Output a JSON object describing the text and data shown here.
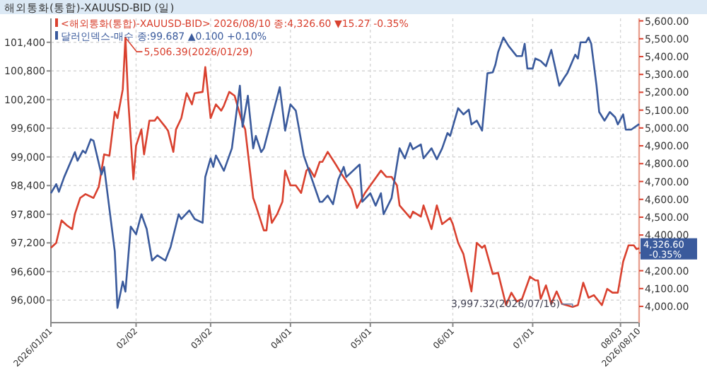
{
  "chart_data": {
    "type": "line",
    "title": "해외통화(통합)-XAUUSD-BID (일)",
    "xlim": [
      "2026-01-01",
      "2026-08-10"
    ],
    "xticks": [
      {
        "value": "2026-01-01",
        "label": "2026/01/01"
      },
      {
        "value": "2026-02-02",
        "label": "02/02"
      },
      {
        "value": "2026-03-02",
        "label": "03/02"
      },
      {
        "value": "2026-04-01",
        "label": "04/01"
      },
      {
        "value": "2026-05-01",
        "label": "05/01"
      },
      {
        "value": "2026-06-01",
        "label": "06/01"
      },
      {
        "value": "2026-07-01",
        "label": "07/01"
      },
      {
        "value": "2026-08-03",
        "label": "08/03"
      },
      {
        "value": "2026-08-10",
        "label": "2026/08/10"
      }
    ],
    "ylim": [
      95530,
      101900
    ],
    "yticks": [
      {
        "value": 96000,
        "label": "96,000"
      },
      {
        "value": 96600,
        "label": "96,600"
      },
      {
        "value": 97200,
        "label": "97,200"
      },
      {
        "value": 97800,
        "label": "97,800"
      },
      {
        "value": 98400,
        "label": "98,400"
      },
      {
        "value": 99000,
        "label": "99,000"
      },
      {
        "value": 99600,
        "label": "99,600"
      },
      {
        "value": 100200,
        "label": "100,200"
      },
      {
        "value": 100800,
        "label": "100,800"
      },
      {
        "value": 101400,
        "label": "101,400"
      }
    ],
    "y2lim": [
      3909,
      5614
    ],
    "y2ticks": [
      {
        "value": 4000,
        "label": "4,000.00"
      },
      {
        "value": 4100,
        "label": "4,100.00"
      },
      {
        "value": 4200,
        "label": "4,200.00"
      },
      {
        "value": 4300,
        "label": null
      },
      {
        "value": 4400,
        "label": "4,400.00"
      },
      {
        "value": 4500,
        "label": "4,500.00"
      },
      {
        "value": 4600,
        "label": "4,600.00"
      },
      {
        "value": 4700,
        "label": "4,700.00"
      },
      {
        "value": 4800,
        "label": "4,800.00"
      },
      {
        "value": 4900,
        "label": "4,900.00"
      },
      {
        "value": 5000,
        "label": "5,000.00"
      },
      {
        "value": 5100,
        "label": "5,100.00"
      },
      {
        "value": 5200,
        "label": "5,200.00"
      },
      {
        "value": 5300,
        "label": "5,300.00"
      },
      {
        "value": 5400,
        "label": "5,400.00"
      },
      {
        "value": 5500,
        "label": "5,500.00"
      },
      {
        "value": 5600,
        "label": "5,600.00"
      }
    ],
    "grid": true,
    "legend": "top left",
    "marker": "none",
    "line_style": "solid",
    "series": [
      {
        "name": "<해외통화(통합)-XAUUSD-BID> 2026/08/10 종:4,326.60 ▼15.27 -0.35%",
        "color": "#d9412f",
        "axis": "y2",
        "x": [
          "2026-01-01",
          "2026-01-03",
          "2026-01-05",
          "2026-01-07",
          "2026-01-09",
          "2026-01-10",
          "2026-01-12",
          "2026-01-14",
          "2026-01-17",
          "2026-01-19",
          "2026-01-21",
          "2026-01-23",
          "2026-01-25",
          "2026-01-26",
          "2026-01-28",
          "2026-01-29",
          "2026-01-30",
          "2026-02-01",
          "2026-02-02",
          "2026-02-04",
          "2026-02-05",
          "2026-02-07",
          "2026-02-09",
          "2026-02-10",
          "2026-02-13",
          "2026-02-14",
          "2026-02-16",
          "2026-02-17",
          "2026-02-19",
          "2026-02-21",
          "2026-02-23",
          "2026-02-24",
          "2026-02-27",
          "2026-02-28",
          "2026-03-02",
          "2026-03-04",
          "2026-03-06",
          "2026-03-07",
          "2026-03-09",
          "2026-03-11",
          "2026-03-14",
          "2026-03-15",
          "2026-03-18",
          "2026-03-19",
          "2026-03-22",
          "2026-03-23",
          "2026-03-24",
          "2026-03-25",
          "2026-03-27",
          "2026-03-29",
          "2026-03-30",
          "2026-04-01",
          "2026-04-03",
          "2026-04-05",
          "2026-04-07",
          "2026-04-08",
          "2026-04-10",
          "2026-04-12",
          "2026-04-13",
          "2026-04-15",
          "2026-04-18",
          "2026-04-20",
          "2026-04-24",
          "2026-04-26",
          "2026-04-29",
          "2026-05-05",
          "2026-05-07",
          "2026-05-09",
          "2026-05-11",
          "2026-05-12",
          "2026-05-16",
          "2026-05-17",
          "2026-05-20",
          "2026-05-21",
          "2026-05-24",
          "2026-05-26",
          "2026-05-28",
          "2026-05-31",
          "2026-06-01",
          "2026-06-03",
          "2026-06-05",
          "2026-06-08",
          "2026-06-10",
          "2026-06-12",
          "2026-06-13",
          "2026-06-16",
          "2026-06-18",
          "2026-06-21",
          "2026-06-23",
          "2026-06-25",
          "2026-06-27",
          "2026-06-30",
          "2026-07-02",
          "2026-07-03",
          "2026-07-04",
          "2026-07-06",
          "2026-07-08",
          "2026-07-10",
          "2026-07-12",
          "2026-07-16",
          "2026-07-18",
          "2026-07-20",
          "2026-07-22",
          "2026-07-24",
          "2026-07-27",
          "2026-07-29",
          "2026-07-31",
          "2026-08-02",
          "2026-08-04",
          "2026-08-06",
          "2026-08-08",
          "2026-08-09",
          "2026-08-10"
        ],
        "values": [
          4328,
          4356,
          4482,
          4454,
          4433,
          4517,
          4608,
          4629,
          4608,
          4671,
          4852,
          4845,
          5090,
          5055,
          5216,
          5506.39,
          5167,
          4712,
          4901,
          4992,
          4852,
          5041,
          5041,
          5062,
          5006,
          4985,
          4866,
          4992,
          5055,
          5195,
          5132,
          5195,
          5202,
          5341,
          5055,
          5132,
          5097,
          5125,
          5202,
          5181,
          5027,
          4992,
          4608,
          4566,
          4426,
          4426,
          4566,
          4468,
          4517,
          4587,
          4761,
          4678,
          4678,
          4636,
          4761,
          4775,
          4726,
          4810,
          4810,
          4866,
          4796,
          4747,
          4657,
          4552,
          4636,
          4761,
          4726,
          4726,
          4678,
          4566,
          4496,
          4531,
          4503,
          4566,
          4433,
          4566,
          4461,
          4496,
          4461,
          4356,
          4293,
          4084,
          4356,
          4328,
          4342,
          4182,
          4188,
          4007,
          4077,
          4027,
          4042,
          4167,
          4146,
          4146,
          4042,
          4118,
          4014,
          4084,
          4014,
          3997.32,
          4007,
          4133,
          4049,
          4063,
          4007,
          4098,
          4077,
          4077,
          4251,
          4342,
          4342,
          4321,
          4326.6
        ]
      },
      {
        "name": "달러인덱스-매수 종:99.687 ▲0.100 +0.10%",
        "color": "#3a5a9c",
        "x": [
          "2026-01-01",
          "2026-01-03",
          "2026-01-04",
          "2026-01-06",
          "2026-01-10",
          "2026-01-11",
          "2026-01-13",
          "2026-01-14",
          "2026-01-16",
          "2026-01-17",
          "2026-01-20",
          "2026-01-21",
          "2026-01-25",
          "2026-01-26",
          "2026-01-28",
          "2026-01-29",
          "2026-01-31",
          "2026-02-02",
          "2026-02-04",
          "2026-02-06",
          "2026-02-08",
          "2026-02-10",
          "2026-02-13",
          "2026-02-15",
          "2026-02-18",
          "2026-02-19",
          "2026-02-22",
          "2026-02-24",
          "2026-02-27",
          "2026-02-28",
          "2026-03-02",
          "2026-03-03",
          "2026-03-04",
          "2026-03-07",
          "2026-03-10",
          "2026-03-13",
          "2026-03-14",
          "2026-03-16",
          "2026-03-18",
          "2026-03-19",
          "2026-03-21",
          "2026-03-22",
          "2026-03-28",
          "2026-03-30",
          "2026-04-01",
          "2026-04-03",
          "2026-04-06",
          "2026-04-12",
          "2026-04-13",
          "2026-04-15",
          "2026-04-17",
          "2026-04-19",
          "2026-04-21",
          "2026-04-22",
          "2026-04-27",
          "2026-04-28",
          "2026-05-01",
          "2026-05-03",
          "2026-05-05",
          "2026-05-06",
          "2026-05-09",
          "2026-05-11",
          "2026-05-12",
          "2026-05-14",
          "2026-05-16",
          "2026-05-17",
          "2026-05-20",
          "2026-05-21",
          "2026-05-24",
          "2026-05-26",
          "2026-05-28",
          "2026-05-30",
          "2026-05-31",
          "2026-06-03",
          "2026-06-05",
          "2026-06-07",
          "2026-06-08",
          "2026-06-10",
          "2026-06-12",
          "2026-06-14",
          "2026-06-16",
          "2026-06-17",
          "2026-06-18",
          "2026-06-20",
          "2026-06-22",
          "2026-06-25",
          "2026-06-27",
          "2026-06-28",
          "2026-06-29",
          "2026-07-01",
          "2026-07-02",
          "2026-07-04",
          "2026-07-06",
          "2026-07-08",
          "2026-07-11",
          "2026-07-13",
          "2026-07-14",
          "2026-07-17",
          "2026-07-18",
          "2026-07-19",
          "2026-07-21",
          "2026-07-22",
          "2026-07-23",
          "2026-07-25",
          "2026-07-26",
          "2026-07-28",
          "2026-07-30",
          "2026-08-01",
          "2026-08-02",
          "2026-08-04",
          "2026-08-05",
          "2026-08-07",
          "2026-08-10"
        ],
        "values": [
          98240,
          98430,
          98270,
          98580,
          99100,
          98920,
          99130,
          99080,
          99370,
          99340,
          98630,
          98790,
          97020,
          95840,
          96390,
          96180,
          97540,
          97380,
          97800,
          97490,
          96830,
          96940,
          96830,
          97120,
          97800,
          97700,
          97880,
          97700,
          97620,
          98580,
          98970,
          98790,
          99030,
          98710,
          99180,
          100490,
          99630,
          100280,
          99180,
          99440,
          99100,
          99180,
          100460,
          99550,
          100100,
          99970,
          99030,
          98060,
          98060,
          98190,
          98010,
          98530,
          98790,
          98580,
          98840,
          98060,
          98240,
          97980,
          98240,
          97800,
          98140,
          98840,
          99180,
          98970,
          99290,
          99160,
          99260,
          98970,
          99180,
          98950,
          99180,
          99500,
          99440,
          100020,
          99890,
          99990,
          99680,
          99760,
          99550,
          100750,
          100770,
          100930,
          101190,
          101500,
          101320,
          101110,
          101110,
          101370,
          100850,
          100850,
          101060,
          101010,
          100900,
          101240,
          100490,
          100670,
          100750,
          101140,
          101060,
          101400,
          101400,
          101500,
          101370,
          100490,
          99940,
          99760,
          99940,
          99830,
          99680,
          99890,
          99570,
          99570,
          99687
        ]
      }
    ],
    "annotations": [
      "5,506.39(2026/01/29)",
      "3,997.32(2026/07/16)",
      "4,326.60 -0.35%"
    ]
  }
}
